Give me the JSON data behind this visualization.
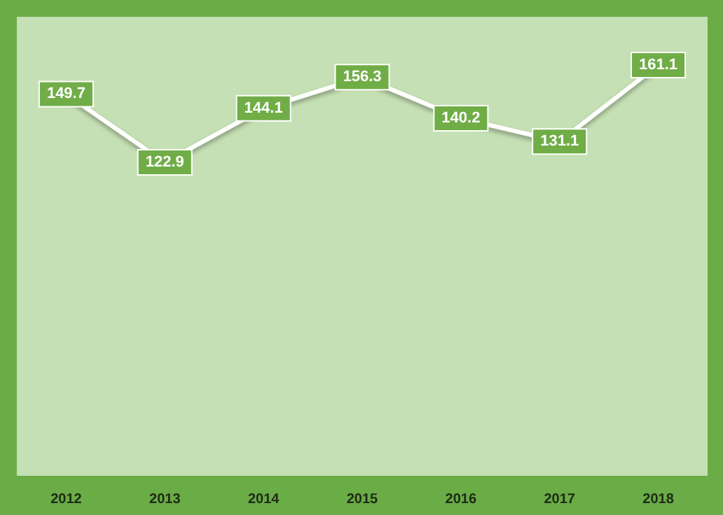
{
  "chart_data": {
    "type": "line",
    "categories": [
      "2012",
      "2013",
      "2014",
      "2015",
      "2016",
      "2017",
      "2018"
    ],
    "values": [
      149.7,
      122.9,
      144.1,
      156.3,
      140.2,
      131.1,
      161.1
    ],
    "color": "#ffffff",
    "data_labels": true,
    "grid": false,
    "marker": "square",
    "line_style": "solid"
  }
}
